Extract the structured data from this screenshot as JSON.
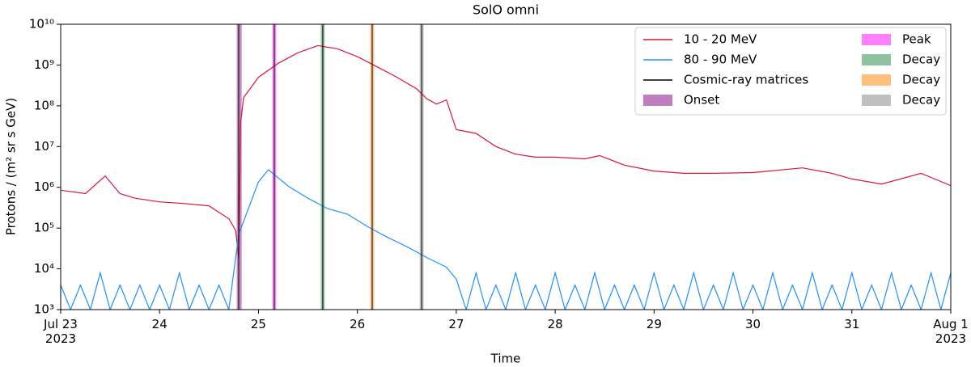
{
  "chart_data": {
    "type": "line",
    "title": "SolO omni",
    "xlabel": "Time",
    "ylabel": "Protons / (m² sr s GeV)",
    "xlim": [
      23,
      32
    ],
    "xticks": [
      {
        "value": 23,
        "label": "Jul 23\n2023"
      },
      24,
      25,
      26,
      27,
      28,
      29,
      30,
      31,
      {
        "value": 32,
        "label": "Aug 1\n2023"
      }
    ],
    "ylim": [
      1000,
      10000000000
    ],
    "log_y": true,
    "yticks": [
      {
        "value": 1000,
        "label": "10³"
      },
      {
        "value": 10000,
        "label": "10⁴"
      },
      {
        "value": 100000,
        "label": "10⁵"
      },
      {
        "value": 1000000,
        "label": "10⁶"
      },
      {
        "value": 10000000,
        "label": "10⁷"
      },
      {
        "value": 100000000,
        "label": "10⁸"
      },
      {
        "value": 1000000000,
        "label": "10⁹"
      },
      {
        "value": 10000000000,
        "label": "10¹⁰"
      }
    ],
    "legend": "upper right",
    "series": [
      {
        "name": "10 - 20 MeV",
        "color": "#dc143c",
        "x": [
          23.0,
          23.25,
          23.45,
          23.6,
          23.75,
          24.0,
          24.25,
          24.5,
          24.7,
          24.77,
          24.8,
          24.82,
          24.85,
          25.0,
          25.2,
          25.4,
          25.6,
          25.8,
          26.0,
          26.2,
          26.4,
          26.6,
          26.7,
          26.8,
          26.9,
          27.0,
          27.2,
          27.4,
          27.6,
          27.8,
          28.0,
          28.3,
          28.45,
          28.7,
          29.0,
          29.3,
          29.6,
          30.0,
          30.5,
          30.8,
          31.0,
          31.3,
          31.7,
          32.0
        ],
        "values": [
          850000,
          700000,
          1900000,
          700000,
          540000,
          440000,
          400000,
          350000,
          170000,
          87000,
          18000,
          40000000,
          160000000,
          500000000,
          1100000000,
          2000000000,
          3000000000,
          2500000000,
          1600000000,
          900000000,
          500000000,
          260000000,
          150000000,
          110000000,
          140000000,
          26000000,
          21000000,
          10000000,
          6500000,
          5500000,
          5500000,
          5000000,
          6000000,
          3500000,
          2500000,
          2200000,
          2200000,
          2300000,
          3000000,
          2200000,
          1600000,
          1200000,
          2200000,
          1100000
        ]
      },
      {
        "name": "80 - 90 MeV",
        "color": "#1e90ff",
        "x": [
          23.0,
          23.1,
          23.2,
          23.3,
          23.4,
          23.5,
          23.6,
          23.7,
          23.8,
          23.9,
          24.0,
          24.1,
          24.2,
          24.3,
          24.4,
          24.5,
          24.6,
          24.7,
          24.8,
          25.0,
          25.1,
          25.2,
          25.3,
          25.5,
          25.7,
          25.9,
          26.1,
          26.3,
          26.5,
          26.7,
          26.9,
          27.0,
          27.1,
          27.2,
          27.3,
          27.4,
          27.5,
          27.6,
          27.7,
          27.8,
          27.9,
          28.0,
          28.1,
          28.2,
          28.3,
          28.4,
          28.5,
          28.6,
          28.7,
          28.8,
          28.9,
          29.0,
          29.1,
          29.2,
          29.3,
          29.4,
          29.5,
          29.6,
          29.7,
          29.8,
          29.9,
          30.0,
          30.1,
          30.2,
          30.3,
          30.4,
          30.5,
          30.6,
          30.7,
          30.8,
          30.9,
          31.0,
          31.1,
          31.2,
          31.3,
          31.4,
          31.5,
          31.6,
          31.7,
          31.8,
          31.9,
          32.0
        ],
        "values": [
          4000,
          1000,
          4000,
          1000,
          8000,
          1000,
          4000,
          1000,
          4000,
          1000,
          4000,
          1000,
          8000,
          1000,
          4000,
          1000,
          4000,
          1000,
          70000,
          1350000,
          2700000,
          1700000,
          1070000,
          540000,
          300000,
          220000,
          110000,
          60000,
          35000,
          19000,
          11000,
          5600,
          1000,
          8000,
          1000,
          4000,
          1000,
          8000,
          1000,
          4000,
          1000,
          8000,
          1000,
          4000,
          1000,
          8000,
          1000,
          4000,
          1000,
          4000,
          1000,
          8000,
          1000,
          4000,
          1000,
          8000,
          1000,
          4000,
          1000,
          8000,
          1000,
          4000,
          1000,
          8000,
          1000,
          4000,
          1000,
          8000,
          1000,
          4000,
          1000,
          8000,
          1000,
          4000,
          1000,
          8000,
          1000,
          4000,
          1000,
          8000,
          1000,
          8000
        ]
      }
    ],
    "lines": {
      "name": "Cosmic-ray matrices",
      "color": "#000000",
      "x": [
        24.8,
        25.16,
        25.65,
        26.15,
        26.65
      ]
    },
    "bands": [
      {
        "name": "Onset",
        "color": "#bf7fbf",
        "start": 24.78,
        "end": 24.83
      },
      {
        "name": "Peak",
        "color": "#ff80ff",
        "start": 25.14,
        "end": 25.18
      },
      {
        "name": "Decay",
        "color": "#8fc39f",
        "start": 25.63,
        "end": 25.67
      },
      {
        "name": "Decay",
        "color": "#ffbf7f",
        "start": 26.13,
        "end": 26.17
      },
      {
        "name": "Decay",
        "color": "#bfbfbf",
        "start": 26.63,
        "end": 26.67
      }
    ]
  }
}
